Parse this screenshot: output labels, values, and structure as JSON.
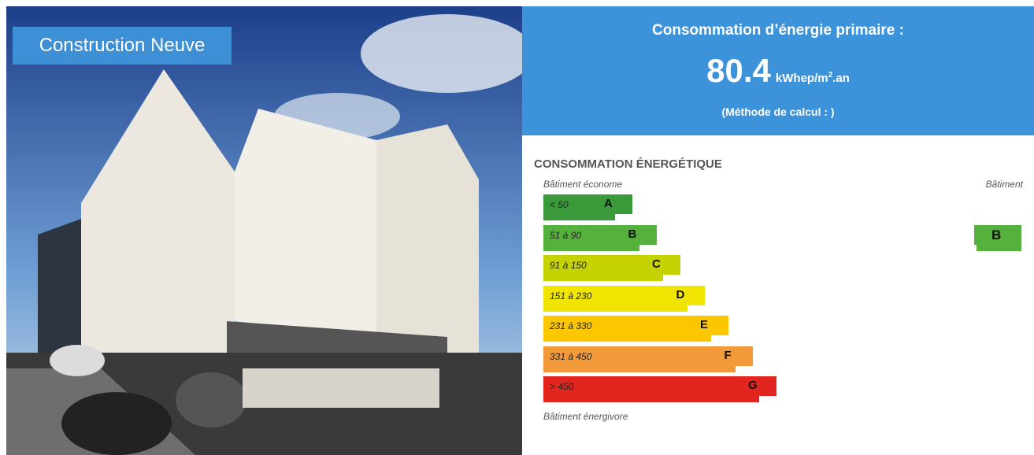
{
  "photo": {
    "caption": "Construction Neuve"
  },
  "header": {
    "title": "Consommation d’énergie primaire :",
    "value": "80.4",
    "unit_main": "kWhep/m",
    "unit_sup": "2",
    "unit_end": ".an",
    "method": "(Méthode de calcul : )"
  },
  "scale": {
    "title": "CONSOMMATION ÉNERGÉTIQUE",
    "top_label": "Bâtiment économe",
    "bottom_label": "Bâtiment énergivore",
    "column_label": "Bâtiment",
    "rows": [
      {
        "range": "< 50",
        "letter": "A",
        "color": "#3a9a3a"
      },
      {
        "range": "51 à 90",
        "letter": "B",
        "color": "#55b03c"
      },
      {
        "range": "91 à 150",
        "letter": "C",
        "color": "#c4d300"
      },
      {
        "range": "151 à 230",
        "letter": "D",
        "color": "#f0e500"
      },
      {
        "range": "231 à 330",
        "letter": "E",
        "color": "#fcc700"
      },
      {
        "range": "331 à 450",
        "letter": "F",
        "color": "#f2993a"
      },
      {
        "range": "> 450",
        "letter": "G",
        "color": "#e2251f"
      }
    ],
    "indicator": {
      "letter": "B"
    }
  }
}
